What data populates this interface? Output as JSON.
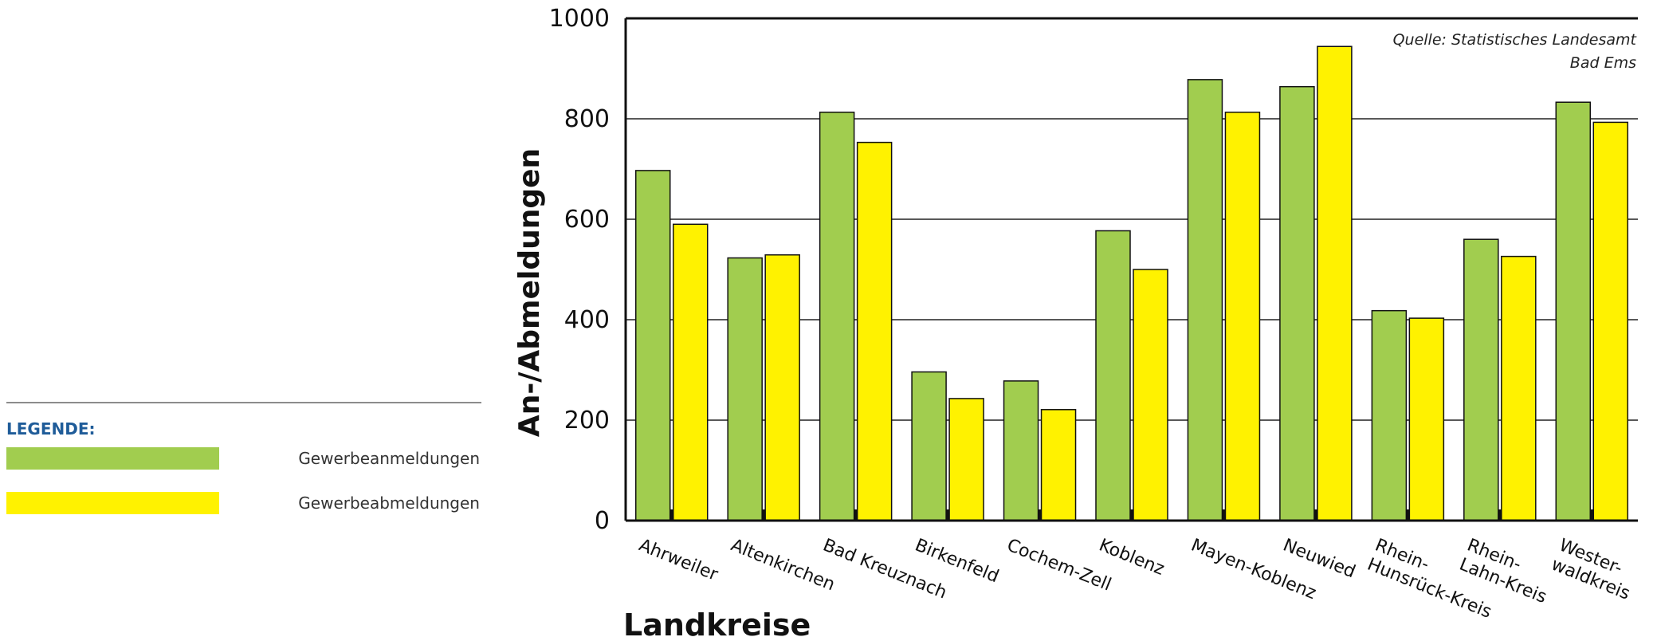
{
  "legend": {
    "title": "LEGENDE:",
    "items": [
      {
        "label": "Gewerbeanmeldungen",
        "color": "#a1cd4f"
      },
      {
        "label": "Gewerbeabmeldungen",
        "color": "#fff200"
      }
    ]
  },
  "source_line1": "Quelle: Statistisches Landesamt",
  "source_line2": "Bad Ems",
  "chart_data": {
    "type": "bar",
    "xlabel": "Landkreise",
    "ylabel": "An-/Abmeldungen",
    "ylim": [
      0,
      1000
    ],
    "yticks": [
      0,
      200,
      400,
      600,
      800,
      1000
    ],
    "grid": true,
    "legend_placement": "left",
    "categories": [
      [
        "Ahrweiler"
      ],
      [
        "Altenkirchen"
      ],
      [
        "Bad Kreuznach"
      ],
      [
        "Birkenfeld"
      ],
      [
        "Cochem-Zell"
      ],
      [
        "Koblenz"
      ],
      [
        "Mayen-Koblenz"
      ],
      [
        "Neuwied"
      ],
      [
        "Rhein-",
        "Hunsrück-Kreis"
      ],
      [
        "Rhein-",
        "Lahn-Kreis"
      ],
      [
        "Wester-",
        "waldkreis"
      ]
    ],
    "series": [
      {
        "name": "Gewerbeanmeldungen",
        "color": "#a1cd4f",
        "values": [
          697,
          523,
          813,
          296,
          278,
          577,
          878,
          864,
          418,
          560,
          833
        ]
      },
      {
        "name": "Gewerbeabmeldungen",
        "color": "#fff200",
        "values": [
          590,
          529,
          753,
          243,
          221,
          500,
          813,
          944,
          403,
          526,
          793
        ]
      }
    ]
  }
}
